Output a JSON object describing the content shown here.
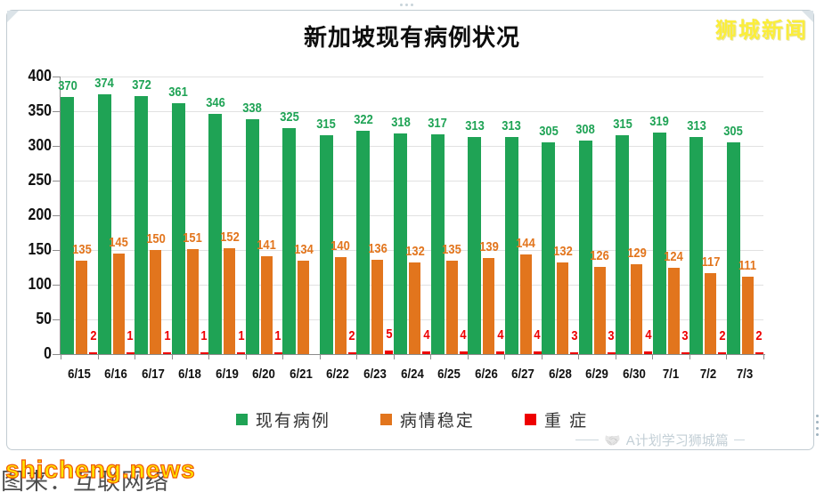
{
  "page": {
    "brand": "狮城新闻",
    "watermark": "shicheng.news",
    "caption": "图来：互联网络",
    "footer_text": "A计划学习狮城篇",
    "footer_icon": "🤝",
    "colors": {
      "brand_yellow": "#fbee3a",
      "watermark_yellow": "#ffe400",
      "watermark_stroke": "#f05a00",
      "footer_gray": "#c3cfd6"
    }
  },
  "chart_data": {
    "type": "bar",
    "title": "新加坡现有病例状况",
    "categories": [
      "6/15",
      "6/16",
      "6/17",
      "6/18",
      "6/19",
      "6/20",
      "6/21",
      "6/22",
      "6/23",
      "6/24",
      "6/25",
      "6/26",
      "6/27",
      "6/28",
      "6/29",
      "6/30",
      "7/1",
      "7/2",
      "7/3"
    ],
    "series": [
      {
        "name": "现有病例",
        "color": "#1fa355",
        "values": [
          370,
          374,
          372,
          361,
          346,
          338,
          325,
          315,
          322,
          318,
          317,
          313,
          313,
          305,
          308,
          315,
          319,
          313,
          305
        ]
      },
      {
        "name": "病情稳定",
        "color": "#e2751d",
        "values": [
          135,
          145,
          150,
          151,
          152,
          141,
          134,
          140,
          136,
          132,
          135,
          139,
          144,
          132,
          126,
          129,
          124,
          117,
          111
        ]
      },
      {
        "name": "重 症",
        "color": "#ee0000",
        "values": [
          2,
          1,
          1,
          1,
          1,
          1,
          null,
          2,
          5,
          4,
          4,
          4,
          4,
          3,
          3,
          4,
          3,
          2,
          2
        ]
      }
    ],
    "xlabel": "",
    "ylabel": "",
    "ylim": [
      0,
      400
    ],
    "ytick_step": 50,
    "grid": true,
    "legend_position": "bottom"
  }
}
